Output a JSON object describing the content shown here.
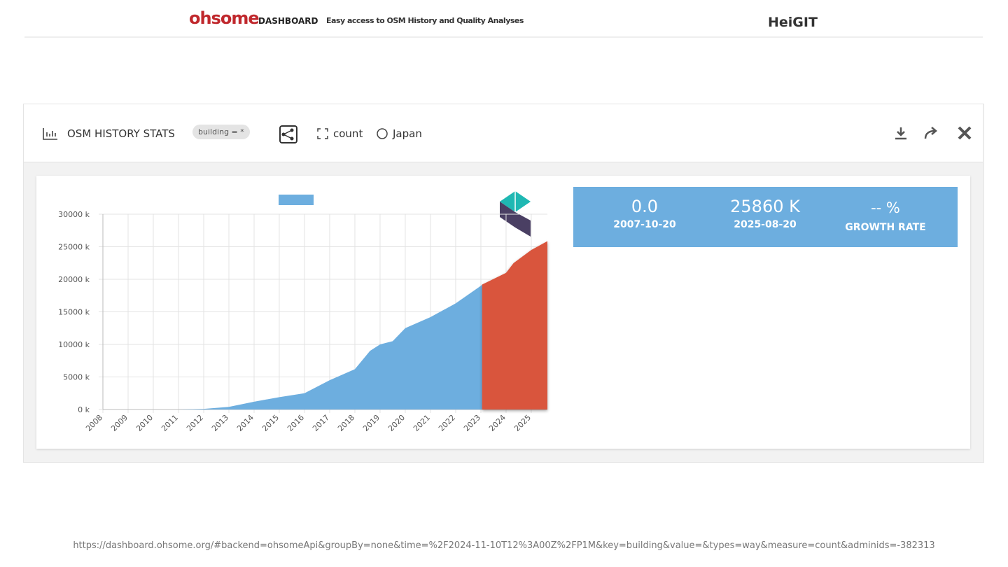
{
  "header": {
    "logo": "ohsome",
    "logo_sub": "DASHBOARD",
    "tagline": "Easy access to OSM History and Quality Analyses",
    "partner": "HeiGIT"
  },
  "panel": {
    "title": "OSM HISTORY STATS",
    "filter": "building = *",
    "measure": "count",
    "region": "Japan"
  },
  "chart_data": {
    "type": "area",
    "x": [
      2008,
      2011,
      2012,
      2013,
      2014,
      2015,
      2016,
      2017,
      2018,
      2018.6,
      2019,
      2019.5,
      2020,
      2021,
      2022,
      2023,
      2023.05,
      2024,
      2024.3,
      2025,
      2025.64
    ],
    "series": [
      {
        "color": "#6daedf",
        "values": [
          0,
          0,
          100,
          400,
          1200,
          1900,
          2500,
          4500,
          6200,
          9000,
          10000,
          10500,
          12500,
          14200,
          16300,
          19000,
          19200,
          null,
          null,
          null,
          null
        ]
      },
      {
        "color": "#d9543c",
        "values": [
          null,
          null,
          null,
          null,
          null,
          null,
          null,
          null,
          null,
          null,
          null,
          null,
          null,
          null,
          null,
          null,
          19200,
          21000,
          22500,
          24500,
          25860
        ]
      }
    ],
    "xlim": [
      2008,
      2025.64
    ],
    "xticks": [
      2008,
      2009,
      2010,
      2011,
      2012,
      2013,
      2014,
      2015,
      2016,
      2017,
      2018,
      2019,
      2020,
      2021,
      2022,
      2023,
      2024,
      2025
    ],
    "ylim": [
      0,
      30000
    ],
    "yticks": [
      {
        "value": 0,
        "label": "0 k"
      },
      {
        "value": 5000,
        "label": "5000 k"
      },
      {
        "value": 10000,
        "label": "10000 k"
      },
      {
        "value": 15000,
        "label": "15000 k"
      },
      {
        "value": 20000,
        "label": "20000 k"
      },
      {
        "value": 25000,
        "label": "25000 k"
      },
      {
        "value": 30000,
        "label": "30000 k"
      }
    ],
    "grid": true
  },
  "stats": [
    {
      "value": "0.0",
      "label": "2007-10-20"
    },
    {
      "value": "25860 K",
      "label": "2025-08-20"
    },
    {
      "value": "-- %",
      "label": "GROWTH RATE"
    }
  ],
  "footer": {
    "url": "https://dashboard.ohsome.org/#backend=ohsomeApi&groupBy=none&time=%2F2024-11-10T12%3A00Z%2FP1M&key=building&value=&types=way&measure=count&adminids=-382313"
  }
}
